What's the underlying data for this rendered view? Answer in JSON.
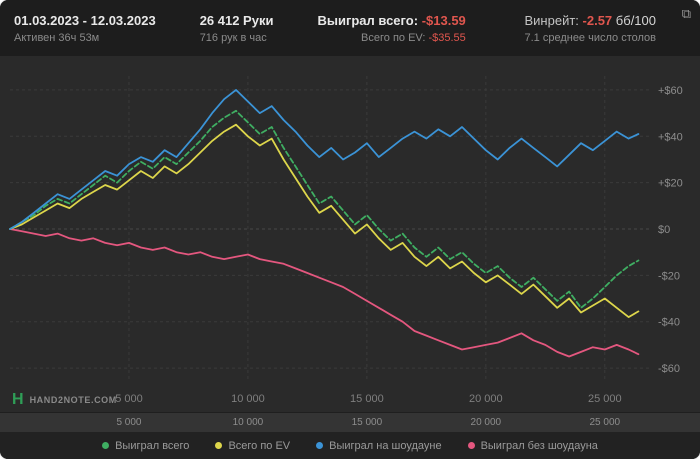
{
  "header": {
    "date_range": "01.03.2023 - 12.03.2023",
    "active_time": "Активен 36ч 53м",
    "hands": "26 412 Руки",
    "hands_per_hour": "716 рук в час",
    "won_label": "Выиграл всего:",
    "won_value": "-$13.59",
    "ev_label": "Всего по EV:",
    "ev_value": "-$35.55",
    "winrate_label": "Винрейт:",
    "winrate_value": "-2.57",
    "winrate_unit": "бб/100",
    "tables_avg": "7.1 среднее число столов"
  },
  "footer": {
    "logo_letter": "H",
    "logo_text": "HAND2NOTE.COM"
  },
  "colors": {
    "header_bg": "#1d1d1d",
    "chart_bg": "#2a2a2a",
    "negative_red": "#e0564e",
    "green": "#3fae62",
    "yellow": "#ddd64b",
    "blue": "#3b93d6",
    "pink": "#e4577f"
  },
  "chart_data": {
    "type": "line",
    "title": "",
    "xlabel": "hands",
    "ylabel": "$",
    "grid": true,
    "legend_position": "bottom",
    "xlim": [
      0,
      26900
    ],
    "ylim": [
      -66,
      66
    ],
    "x_ticks": [
      {
        "v": 5000,
        "label": "5 000"
      },
      {
        "v": 10000,
        "label": "10 000"
      },
      {
        "v": 15000,
        "label": "15 000"
      },
      {
        "v": 20000,
        "label": "20 000"
      },
      {
        "v": 25000,
        "label": "25 000"
      }
    ],
    "y_ticks": [
      {
        "v": 60,
        "label": "+$60"
      },
      {
        "v": 40,
        "label": "+$40"
      },
      {
        "v": 20,
        "label": "+$20"
      },
      {
        "v": 0,
        "label": "$0"
      },
      {
        "v": -20,
        "label": "-$20"
      },
      {
        "v": -40,
        "label": "-$40"
      },
      {
        "v": -60,
        "label": "-$60"
      }
    ],
    "x": [
      0,
      500,
      1000,
      1500,
      2000,
      2500,
      3000,
      3500,
      4000,
      4500,
      5000,
      5500,
      6000,
      6500,
      7000,
      7500,
      8000,
      8500,
      9000,
      9500,
      10000,
      10500,
      11000,
      11500,
      12000,
      12500,
      13000,
      13500,
      14000,
      14500,
      15000,
      15500,
      16000,
      16500,
      17000,
      17500,
      18000,
      18500,
      19000,
      19500,
      20000,
      20500,
      21000,
      21500,
      22000,
      22500,
      23000,
      23500,
      24000,
      24500,
      25000,
      25500,
      26000,
      26412
    ],
    "series": [
      {
        "name": "Выиграл всего",
        "color": "#3fae62",
        "dash": "5 3",
        "values": [
          0,
          3,
          6,
          10,
          13,
          11,
          15,
          19,
          23,
          20,
          25,
          29,
          26,
          31,
          28,
          33,
          38,
          44,
          48,
          51,
          46,
          41,
          44,
          35,
          27,
          19,
          11,
          14,
          8,
          2,
          6,
          0,
          -5,
          -2,
          -8,
          -12,
          -8,
          -13,
          -10,
          -15,
          -19,
          -16,
          -21,
          -25,
          -21,
          -26,
          -31,
          -27,
          -34,
          -30,
          -25,
          -20,
          -16,
          -13.59
        ]
      },
      {
        "name": "Всего по EV",
        "color": "#ddd64b",
        "dash": "",
        "values": [
          0,
          2,
          5,
          8,
          11,
          9,
          13,
          16,
          19,
          17,
          21,
          25,
          22,
          27,
          24,
          28,
          33,
          38,
          42,
          45,
          40,
          36,
          39,
          30,
          22,
          14,
          7,
          10,
          4,
          -2,
          2,
          -4,
          -9,
          -6,
          -12,
          -16,
          -12,
          -17,
          -14,
          -19,
          -23,
          -20,
          -24,
          -28,
          -24,
          -29,
          -34,
          -30,
          -36,
          -33,
          -30,
          -34,
          -38,
          -35.55
        ]
      },
      {
        "name": "Выиграл на шоудауне",
        "color": "#3b93d6",
        "dash": "",
        "values": [
          0,
          3,
          7,
          11,
          15,
          13,
          17,
          21,
          25,
          23,
          28,
          31,
          29,
          34,
          31,
          37,
          43,
          50,
          56,
          60,
          55,
          50,
          53,
          47,
          42,
          36,
          31,
          35,
          30,
          33,
          37,
          31,
          35,
          39,
          42,
          39,
          43,
          40,
          44,
          39,
          34,
          30,
          35,
          39,
          35,
          31,
          27,
          32,
          37,
          34,
          38,
          42,
          39,
          41
        ]
      },
      {
        "name": "Выиграл без шоудауна",
        "color": "#e4577f",
        "dash": "",
        "values": [
          0,
          -1,
          -2,
          -3,
          -2,
          -4,
          -5,
          -4,
          -6,
          -7,
          -6,
          -8,
          -9,
          -8,
          -10,
          -11,
          -10,
          -12,
          -13,
          -12,
          -11,
          -13,
          -14,
          -15,
          -17,
          -19,
          -21,
          -23,
          -25,
          -28,
          -31,
          -34,
          -37,
          -40,
          -44,
          -46,
          -48,
          -50,
          -52,
          -51,
          -50,
          -49,
          -47,
          -45,
          -48,
          -50,
          -53,
          -55,
          -53,
          -51,
          -52,
          -50,
          -52,
          -54
        ]
      }
    ],
    "draw_order": [
      3,
      1,
      0,
      2
    ]
  }
}
